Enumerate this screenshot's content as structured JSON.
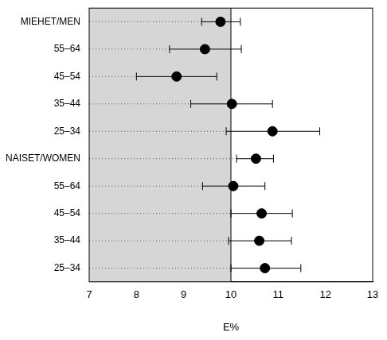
{
  "chart_data": {
    "type": "dot_errorbar",
    "categories": [
      "MIEHET/MEN",
      "55–64",
      "45–54",
      "35–44",
      "25–34",
      "NAISET/WOMEN",
      "55–64",
      "45–54",
      "35–44",
      "25–34"
    ],
    "values": [
      9.78,
      9.45,
      8.85,
      10.02,
      10.88,
      10.53,
      10.05,
      10.65,
      10.6,
      10.72
    ],
    "lower": [
      9.38,
      8.7,
      8.0,
      9.15,
      9.9,
      10.12,
      9.4,
      10.0,
      9.95,
      10.0
    ],
    "upper": [
      10.2,
      10.22,
      9.7,
      10.88,
      11.88,
      10.9,
      10.72,
      11.3,
      11.28,
      11.48
    ],
    "color": "#000000",
    "reference": 10,
    "xlabel": "E%",
    "xlim": [
      7,
      13
    ],
    "xticks": [
      7,
      8,
      9,
      10,
      11,
      12,
      13
    ],
    "grid": false
  }
}
